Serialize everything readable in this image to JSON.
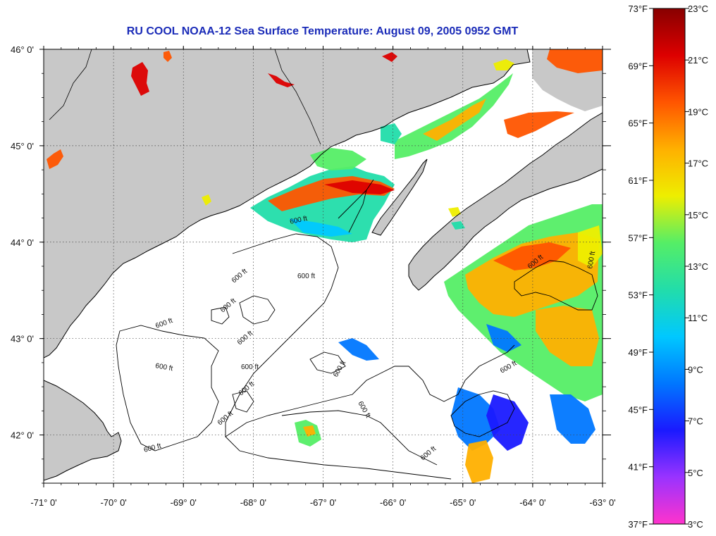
{
  "title": "RU COOL  NOAA-12  Sea Surface Temperature:  August 09, 2005 0952 GMT",
  "map": {
    "lon_range": [
      -71,
      -63
    ],
    "lat_range": [
      41.5,
      46.0
    ],
    "lon_ticks": [
      {
        "value": -71,
        "label": "-71° 0'"
      },
      {
        "value": -70,
        "label": "-70° 0'"
      },
      {
        "value": -69,
        "label": "-69° 0'"
      },
      {
        "value": -68,
        "label": "-68° 0'"
      },
      {
        "value": -67,
        "label": "-67° 0'"
      },
      {
        "value": -66,
        "label": "-66° 0'"
      },
      {
        "value": -65,
        "label": "-65° 0'"
      },
      {
        "value": -64,
        "label": "-64° 0'"
      },
      {
        "value": -63,
        "label": "-63° 0'"
      }
    ],
    "lat_ticks": [
      {
        "value": 46,
        "label": "46° 0'"
      },
      {
        "value": 45,
        "label": "45° 0'"
      },
      {
        "value": 44,
        "label": "44° 0'"
      },
      {
        "value": 43,
        "label": "43° 0'"
      },
      {
        "value": 42,
        "label": "42° 0'"
      }
    ],
    "contour_label": "600 ft",
    "colors": {
      "land": "#c8c8c8",
      "no_data": "#ffffff",
      "coastline": "#000000",
      "grid": "#444444"
    }
  },
  "colorbar": {
    "f_labels": [
      "73°F",
      "69°F",
      "65°F",
      "61°F",
      "57°F",
      "53°F",
      "49°F",
      "45°F",
      "41°F",
      "37°F"
    ],
    "c_labels": [
      "23°C",
      "21°C",
      "19°C",
      "17°C",
      "15°C",
      "13°C",
      "11°C",
      "9°C",
      "7°C",
      "5°C",
      "3°C"
    ],
    "f_range": [
      37,
      73
    ],
    "c_range": [
      3,
      23
    ],
    "stops": [
      "#ff33cc",
      "#9933ff",
      "#1a1aff",
      "#0077ff",
      "#00c8ff",
      "#22ddaa",
      "#55ee66",
      "#eeee00",
      "#ffb000",
      "#ff5500",
      "#dd0000",
      "#880000"
    ]
  }
}
